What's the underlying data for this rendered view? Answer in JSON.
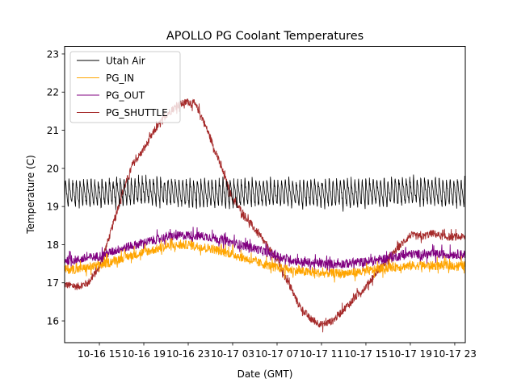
{
  "chart_data": {
    "type": "line",
    "title": "APOLLO PG Coolant Temperatures",
    "xlabel": "Date (GMT)",
    "ylabel": "Temperature (C)",
    "x_units": "hours since 10-16 00:00 GMT",
    "xlim": [
      11.87,
      47.95
    ],
    "ylim": [
      15.43,
      23.21
    ],
    "grid": false,
    "legend_position": "top-left",
    "x_ticks": [
      {
        "value": 15,
        "label": "10-16 15"
      },
      {
        "value": 19,
        "label": "10-16 19"
      },
      {
        "value": 23,
        "label": "10-16 23"
      },
      {
        "value": 27,
        "label": "10-17 03"
      },
      {
        "value": 31,
        "label": "10-17 07"
      },
      {
        "value": 35,
        "label": "10-17 11"
      },
      {
        "value": 39,
        "label": "10-17 15"
      },
      {
        "value": 43,
        "label": "10-17 19"
      },
      {
        "value": 47,
        "label": "10-17 23"
      }
    ],
    "y_ticks": [
      {
        "value": 16,
        "label": "16"
      },
      {
        "value": 17,
        "label": "17"
      },
      {
        "value": 18,
        "label": "18"
      },
      {
        "value": 19,
        "label": "19"
      },
      {
        "value": 20,
        "label": "20"
      },
      {
        "value": 21,
        "label": "21"
      },
      {
        "value": 22,
        "label": "22"
      },
      {
        "value": 23,
        "label": "23"
      }
    ],
    "series": [
      {
        "name": "Utah Air",
        "color": "#000000",
        "pattern": "sawtooth",
        "oscillation_low": 19.0,
        "oscillation_high": 19.8,
        "cycle_hours": 0.33,
        "x": [
          11.87,
          15,
          19,
          23,
          27,
          31,
          35,
          39,
          43,
          47.95
        ],
        "y": [
          19.35,
          19.35,
          19.4,
          19.35,
          19.35,
          19.35,
          19.35,
          19.35,
          19.4,
          19.35
        ]
      },
      {
        "name": "PG_IN",
        "color": "#ffa500",
        "noise": 0.12,
        "x": [
          11.87,
          13,
          15,
          17,
          19,
          21,
          23,
          25,
          27,
          29,
          31,
          33,
          35,
          37,
          39,
          41,
          43,
          45,
          47.95
        ],
        "y": [
          17.35,
          17.35,
          17.45,
          17.65,
          17.8,
          17.95,
          18.0,
          17.9,
          17.75,
          17.55,
          17.4,
          17.3,
          17.25,
          17.25,
          17.3,
          17.4,
          17.45,
          17.45,
          17.45
        ]
      },
      {
        "name": "PG_OUT",
        "color": "#800080",
        "noise": 0.12,
        "x": [
          11.87,
          13,
          15,
          17,
          19,
          21,
          23,
          25,
          27,
          29,
          31,
          33,
          35,
          37,
          39,
          41,
          43,
          45,
          47.95
        ],
        "y": [
          17.6,
          17.6,
          17.7,
          17.9,
          18.05,
          18.2,
          18.25,
          18.2,
          18.05,
          17.9,
          17.7,
          17.55,
          17.5,
          17.5,
          17.55,
          17.65,
          17.75,
          17.75,
          17.75
        ]
      },
      {
        "name": "PG_SHUTTLE",
        "color": "#a52a2a",
        "noise": 0.1,
        "x": [
          11.87,
          13,
          14,
          15,
          16,
          17,
          18,
          19,
          20,
          21,
          22,
          23,
          23.5,
          24,
          25,
          26,
          27,
          28,
          29,
          30,
          31,
          32,
          33,
          34,
          35,
          36,
          37,
          38,
          39,
          40,
          41,
          42,
          43,
          44,
          45,
          46,
          47.95
        ],
        "y": [
          16.95,
          16.9,
          17.0,
          17.4,
          18.3,
          19.3,
          20.1,
          20.5,
          21.0,
          21.4,
          21.65,
          21.75,
          21.7,
          21.5,
          20.8,
          20.0,
          19.2,
          18.8,
          18.4,
          18.0,
          17.6,
          17.0,
          16.4,
          16.05,
          15.9,
          16.0,
          16.3,
          16.6,
          16.9,
          17.3,
          17.6,
          17.95,
          18.25,
          18.2,
          18.3,
          18.2,
          18.2
        ]
      }
    ]
  }
}
